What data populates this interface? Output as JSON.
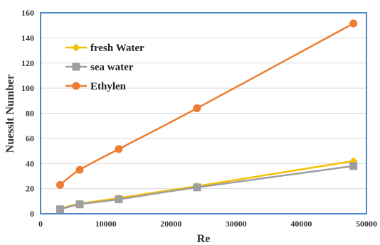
{
  "chart_data": {
    "type": "line",
    "title": "",
    "xlabel": "Re",
    "ylabel": "Nuesslt Number",
    "xlim": [
      0,
      50000
    ],
    "ylim": [
      0,
      160
    ],
    "xticks": [
      0,
      10000,
      20000,
      30000,
      40000,
      50000
    ],
    "yticks": [
      0,
      20,
      40,
      60,
      80,
      100,
      120,
      140,
      160
    ],
    "grid": "horizontal",
    "legend_position": "top-left",
    "colors": {
      "plot_border": "#4a86c8",
      "grid": "#d9d9d9"
    },
    "series": [
      {
        "name": "fresh Water",
        "color": "#f5c000",
        "marker": "diamond",
        "x": [
          3000,
          6000,
          12000,
          24000,
          48000
        ],
        "y": [
          4,
          8,
          12.5,
          22,
          42
        ]
      },
      {
        "name": "sea water",
        "color": "#9e9e9e",
        "marker": "square",
        "x": [
          3000,
          6000,
          12000,
          24000,
          48000
        ],
        "y": [
          3.5,
          7.5,
          11.5,
          21,
          38
        ]
      },
      {
        "name": "Ethylen",
        "color": "#ed7d31",
        "marker": "circle",
        "x": [
          3000,
          6000,
          12000,
          24000,
          48000
        ],
        "y": [
          23,
          35,
          51.5,
          84,
          151.5
        ]
      }
    ]
  }
}
